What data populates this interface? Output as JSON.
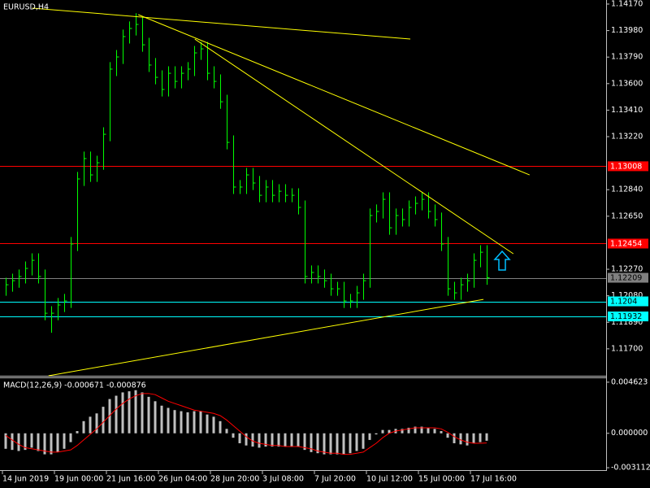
{
  "chart_data": [
    {
      "type": "ohlc",
      "title": "EURUSD,H4",
      "color": "#00ff00",
      "xlim": [
        -0.5,
        92.5
      ],
      "ylim": [
        1.11507,
        1.14199
      ],
      "yticks": [
        {
          "value": 1.1417,
          "label": "1.14170"
        },
        {
          "value": 1.1398,
          "label": "1.13980"
        },
        {
          "value": 1.1379,
          "label": "1.13790"
        },
        {
          "value": 1.136,
          "label": "1.13600"
        },
        {
          "value": 1.1341,
          "label": "1.13410"
        },
        {
          "value": 1.1322,
          "label": "1.13220"
        },
        {
          "value": 1.1284,
          "label": "1.12840"
        },
        {
          "value": 1.1265,
          "label": "1.12650"
        },
        {
          "value": 1.1227,
          "label": "1.12270"
        },
        {
          "value": 1.1208,
          "label": "1.12080"
        },
        {
          "value": 1.1189,
          "label": "1.11890"
        },
        {
          "value": 1.117,
          "label": "1.11700"
        }
      ],
      "high": [
        1.12209,
        1.12238,
        1.12268,
        1.12326,
        1.12384,
        1.12384,
        1.12268,
        1.12005,
        1.12064,
        1.12093,
        1.12501,
        1.12967,
        1.13113,
        1.13113,
        1.13083,
        1.13287,
        1.13754,
        1.13841,
        1.13987,
        1.14045,
        1.14104,
        1.14074,
        1.13928,
        1.13783,
        1.13695,
        1.13724,
        1.13724,
        1.13724,
        1.13754,
        1.1387,
        1.13899,
        1.13899,
        1.13724,
        1.13666,
        1.1352,
        1.13229,
        1.12909,
        1.12996,
        1.12996,
        1.12938,
        1.12909,
        1.12909,
        1.12879,
        1.12879,
        1.1285,
        1.1285,
        1.12763,
        1.12297,
        1.12297,
        1.12268,
        1.12238,
        1.1218,
        1.1218,
        1.12093,
        1.12151,
        1.12238,
        1.12705,
        1.12734,
        1.12821,
        1.12821,
        1.12705,
        1.12705,
        1.12763,
        1.12792,
        1.12821,
        1.12821,
        1.12734,
        1.12676,
        1.12501,
        1.1218,
        1.12209,
        1.12238,
        1.12384,
        1.12442,
        1.12442
      ],
      "low": [
        1.1208,
        1.12109,
        1.12138,
        1.12168,
        1.12226,
        1.12168,
        1.11905,
        1.11815,
        1.11905,
        1.11964,
        1.11993,
        1.12401,
        1.12867,
        1.12896,
        1.12896,
        1.12983,
        1.13187,
        1.13654,
        1.13741,
        1.13887,
        1.13945,
        1.13828,
        1.13683,
        1.13595,
        1.13508,
        1.13508,
        1.13566,
        1.13566,
        1.13624,
        1.13654,
        1.1377,
        1.13624,
        1.13566,
        1.1342,
        1.13129,
        1.12809,
        1.12809,
        1.12809,
        1.12838,
        1.1275,
        1.1275,
        1.1275,
        1.1275,
        1.1275,
        1.1275,
        1.12663,
        1.12168,
        1.12168,
        1.12168,
        1.12138,
        1.1208,
        1.1208,
        1.11993,
        1.11993,
        1.11993,
        1.12051,
        1.12138,
        1.12605,
        1.12634,
        1.12517,
        1.12517,
        1.12576,
        1.12576,
        1.12663,
        1.12692,
        1.12634,
        1.12576,
        1.12401,
        1.1208,
        1.12051,
        1.12051,
        1.12109,
        1.12138,
        1.12284,
        1.12159
      ],
      "close": [
        1.12159,
        1.12188,
        1.12218,
        1.12276,
        1.12334,
        1.12218,
        1.11955,
        1.11955,
        1.12014,
        1.12043,
        1.12451,
        1.12917,
        1.13063,
        1.12946,
        1.13033,
        1.13237,
        1.13704,
        1.13791,
        1.13937,
        1.13995,
        1.14024,
        1.13878,
        1.13733,
        1.13645,
        1.13558,
        1.13674,
        1.13616,
        1.13674,
        1.13704,
        1.1382,
        1.13849,
        1.13674,
        1.13616,
        1.1347,
        1.13179,
        1.12859,
        1.12859,
        1.12946,
        1.12888,
        1.128,
        1.12859,
        1.128,
        1.12829,
        1.128,
        1.128,
        1.12713,
        1.12218,
        1.12247,
        1.12218,
        1.12188,
        1.1213,
        1.1213,
        1.12043,
        1.12043,
        1.12101,
        1.12188,
        1.12655,
        1.12684,
        1.12771,
        1.12567,
        1.12655,
        1.12626,
        1.12713,
        1.12742,
        1.12771,
        1.12684,
        1.12626,
        1.12451,
        1.1213,
        1.12101,
        1.12159,
        1.12188,
        1.12334,
        1.12392,
        1.12209
      ],
      "trendline_color": "#ffff00",
      "trendlines": [
        {
          "x": [
            4.1,
            62.25
          ],
          "y": [
            1.14141,
            1.13919
          ]
        },
        {
          "x": [
            20.4,
            80.6
          ],
          "y": [
            1.14094,
            1.12946
          ]
        },
        {
          "x": [
            29.1,
            78.1
          ],
          "y": [
            1.13919,
            1.12381
          ]
        },
        {
          "x": [
            6.6,
            73.5
          ],
          "y": [
            1.11507,
            1.12054
          ]
        }
      ],
      "levels": [
        {
          "value": 1.13008,
          "color": "#ff0000"
        },
        {
          "value": 1.12454,
          "color": "#ff0000"
        },
        {
          "value": 1.12209,
          "color": "#808080"
        },
        {
          "value": 1.1204,
          "color": "#00ffff"
        },
        {
          "value": 1.11932,
          "color": "#00ffff"
        }
      ]
    },
    {
      "type": "macd",
      "title": "MACD(12,26,9) -0.000671 -0.000876",
      "xlim": [
        -0.5,
        92.5
      ],
      "ylim": [
        -0.003329,
        0.004984
      ],
      "yticks": [
        0.004623,
        {
          "value": 0,
          "label": "0.000000"
        },
        -0.003112
      ],
      "histogram_color": "#c0c0c0",
      "signal_color": "#ff0000",
      "histogram": [
        -0.0014,
        -0.0015,
        -0.0016,
        -0.0015,
        -0.0013,
        -0.0016,
        -0.0019,
        -0.0019,
        -0.0017,
        -0.0014,
        -0.0008,
        0.0002,
        0.0011,
        0.0015,
        0.0018,
        0.0024,
        0.0031,
        0.0034,
        0.0037,
        0.0038,
        0.0039,
        0.0037,
        0.0033,
        0.0029,
        0.0025,
        0.0023,
        0.0021,
        0.002,
        0.0019,
        0.002,
        0.002,
        0.0017,
        0.0015,
        0.0011,
        0.0004,
        -0.0004,
        -0.0009,
        -0.0011,
        -0.0012,
        -0.0013,
        -0.0012,
        -0.0012,
        -0.0012,
        -0.0012,
        -0.0012,
        -0.0012,
        -0.0015,
        -0.0017,
        -0.0018,
        -0.0019,
        -0.0019,
        -0.0019,
        -0.0019,
        -0.0018,
        -0.0016,
        -0.0014,
        -0.0006,
        -0.0001,
        0.0003,
        0.0003,
        0.0004,
        0.0004,
        0.0005,
        0.0006,
        0.0006,
        0.0005,
        0.0004,
        0.0002,
        -0.0004,
        -0.0009,
        -0.001,
        -0.0011,
        -0.0009,
        -0.0008,
        -0.000671
      ],
      "signal": [
        -0.0002,
        -0.0006,
        -0.001,
        -0.0013,
        -0.0014,
        -0.0015,
        -0.0016,
        -0.0017,
        -0.0017,
        -0.0016,
        -0.0015,
        -0.0011,
        -0.0006,
        -0.0001,
        0.0004,
        0.001,
        0.0016,
        0.0022,
        0.0027,
        0.0031,
        0.0034,
        0.0036,
        0.0036,
        0.0035,
        0.0032,
        0.0029,
        0.0027,
        0.0025,
        0.0023,
        0.0021,
        0.002,
        0.0019,
        0.0018,
        0.0016,
        0.0012,
        0.0007,
        0.0002,
        -0.0003,
        -0.0007,
        -0.0009,
        -0.001,
        -0.0011,
        -0.0011,
        -0.0012,
        -0.0012,
        -0.0012,
        -0.0013,
        -0.0014,
        -0.0016,
        -0.0017,
        -0.0018,
        -0.0018,
        -0.0019,
        -0.0019,
        -0.0018,
        -0.0017,
        -0.0013,
        -0.0009,
        -0.0004,
        0,
        0.0002,
        0.0003,
        0.0004,
        0.0005,
        0.0005,
        0.0005,
        0.0005,
        0.0004,
        0.0001,
        -0.0003,
        -0.0006,
        -0.0008,
        -0.0009,
        -0.0009,
        -0.000876
      ],
      "xticks": [
        {
          "value": 0,
          "label": "14 Jun 2019"
        },
        {
          "value": 8,
          "label": "19 Jun 00:00"
        },
        {
          "value": 16,
          "label": "21 Jun 16:00"
        },
        {
          "value": 24,
          "label": "26 Jun 04:00"
        },
        {
          "value": 32,
          "label": "28 Jun 20:00"
        },
        {
          "value": 40,
          "label": "3 Jul 08:00"
        },
        {
          "value": 48,
          "label": "7 Jul 20:00"
        },
        {
          "value": 56,
          "label": "10 Jul 12:00"
        },
        {
          "value": 64,
          "label": "15 Jul 00:00"
        },
        {
          "value": 72,
          "label": "17 Jul 16:00"
        }
      ]
    }
  ]
}
